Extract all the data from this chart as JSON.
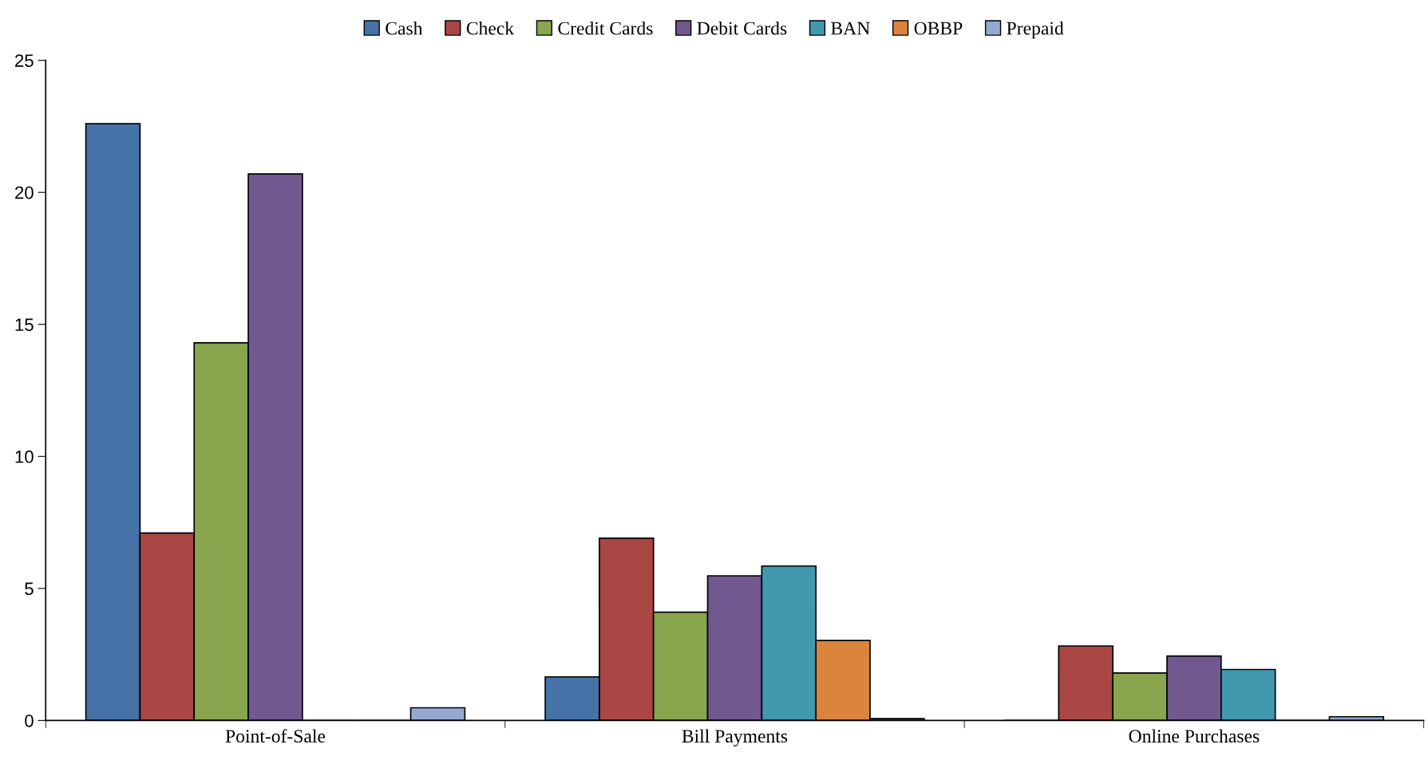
{
  "chart_data": {
    "type": "bar",
    "categories": [
      "Point-of-Sale",
      "Bill Payments",
      "Online Purchases"
    ],
    "series": [
      {
        "name": "Cash",
        "color": "#4573a7",
        "values": [
          22.6,
          1.65,
          0
        ]
      },
      {
        "name": "Check",
        "color": "#aa4644",
        "values": [
          7.1,
          6.9,
          2.82
        ]
      },
      {
        "name": "Credit Cards",
        "color": "#89a54e",
        "values": [
          14.3,
          4.1,
          1.8
        ]
      },
      {
        "name": "Debit Cards",
        "color": "#71588f",
        "values": [
          20.7,
          5.48,
          2.44
        ]
      },
      {
        "name": "BAN",
        "color": "#4298af",
        "values": [
          0,
          5.85,
          1.93
        ]
      },
      {
        "name": "OBBP",
        "color": "#db843d",
        "values": [
          0,
          3.03,
          0
        ]
      },
      {
        "name": "Prepaid",
        "color": "#93a9d0",
        "values": [
          0.48,
          0.07,
          0.14
        ]
      }
    ],
    "ylim": [
      0,
      25
    ],
    "yticks": [
      0,
      5,
      10,
      15,
      20,
      25
    ],
    "grid": false,
    "legend": "top"
  }
}
